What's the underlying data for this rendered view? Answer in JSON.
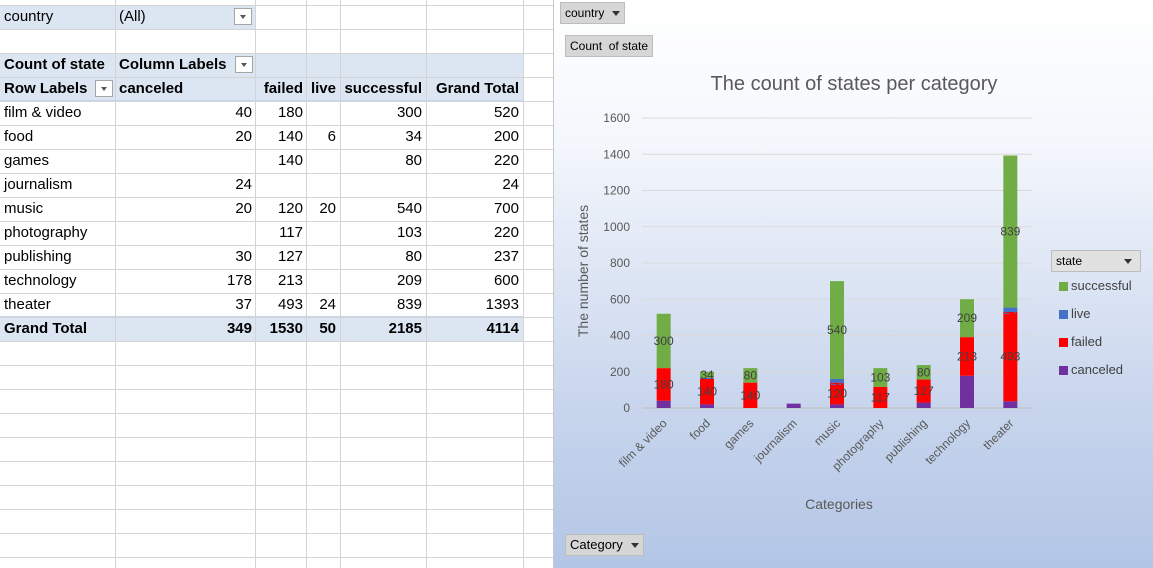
{
  "pivot": {
    "filter_label": "country",
    "filter_value": "(All)",
    "value_field": "Count of state",
    "column_labels": "Column Labels",
    "row_labels": "Row Labels",
    "columns": [
      "canceled",
      "failed",
      "live",
      "successful",
      "Grand Total"
    ],
    "rows": [
      {
        "label": "film & video",
        "cells": [
          "40",
          "180",
          "",
          "300",
          "520"
        ]
      },
      {
        "label": "food",
        "cells": [
          "20",
          "140",
          "6",
          "34",
          "200"
        ]
      },
      {
        "label": "games",
        "cells": [
          "",
          "140",
          "",
          "80",
          "220"
        ]
      },
      {
        "label": "journalism",
        "cells": [
          "24",
          "",
          "",
          "",
          "24"
        ]
      },
      {
        "label": "music",
        "cells": [
          "20",
          "120",
          "20",
          "540",
          "700"
        ]
      },
      {
        "label": "photography",
        "cells": [
          "",
          "117",
          "",
          "103",
          "220"
        ]
      },
      {
        "label": "publishing",
        "cells": [
          "30",
          "127",
          "",
          "80",
          "237"
        ]
      },
      {
        "label": "technology",
        "cells": [
          "178",
          "213",
          "",
          "209",
          "600"
        ]
      },
      {
        "label": "theater",
        "cells": [
          "37",
          "493",
          "24",
          "839",
          "1393"
        ]
      }
    ],
    "grand_total": {
      "label": "Grand Total",
      "cells": [
        "349",
        "1530",
        "50",
        "2185",
        "4114"
      ]
    }
  },
  "chart_buttons": {
    "country": "country",
    "count_of_state": "Count  of state",
    "category": "Category",
    "state": "state"
  },
  "chart_data": {
    "type": "bar",
    "stacked": true,
    "title": "The count of states per category",
    "xlabel": "Categories",
    "ylabel": "The number of states",
    "ylim": [
      0,
      1600
    ],
    "yticks": [
      "0",
      "200",
      "400",
      "600",
      "800",
      "1000",
      "1200",
      "1400",
      "1600"
    ],
    "grid": true,
    "legend_position": "right",
    "legend_title": "state",
    "categories": [
      "film & video",
      "food",
      "games",
      "journalism",
      "music",
      "photography",
      "publishing",
      "technology",
      "theater"
    ],
    "series": [
      {
        "name": "canceled",
        "color": "#7030a0",
        "values": [
          40,
          20,
          0,
          24,
          20,
          0,
          30,
          178,
          37
        ]
      },
      {
        "name": "failed",
        "color": "#ff0000",
        "values": [
          180,
          140,
          140,
          0,
          120,
          117,
          127,
          213,
          493
        ]
      },
      {
        "name": "live",
        "color": "#4472c4",
        "values": [
          0,
          6,
          0,
          0,
          20,
          0,
          0,
          0,
          24
        ]
      },
      {
        "name": "successful",
        "color": "#70ad47",
        "values": [
          300,
          34,
          80,
          0,
          540,
          103,
          80,
          209,
          839
        ]
      }
    ],
    "data_labels": {
      "failed": [
        "180",
        "140",
        "140",
        "",
        "120",
        "117",
        "127",
        "213",
        "493"
      ],
      "live": [
        "",
        "",
        "",
        "",
        "20",
        "",
        "",
        "",
        "24"
      ],
      "successful": [
        "300",
        "34",
        "80",
        "",
        "540",
        "103",
        "80",
        "209",
        "839"
      ]
    }
  }
}
